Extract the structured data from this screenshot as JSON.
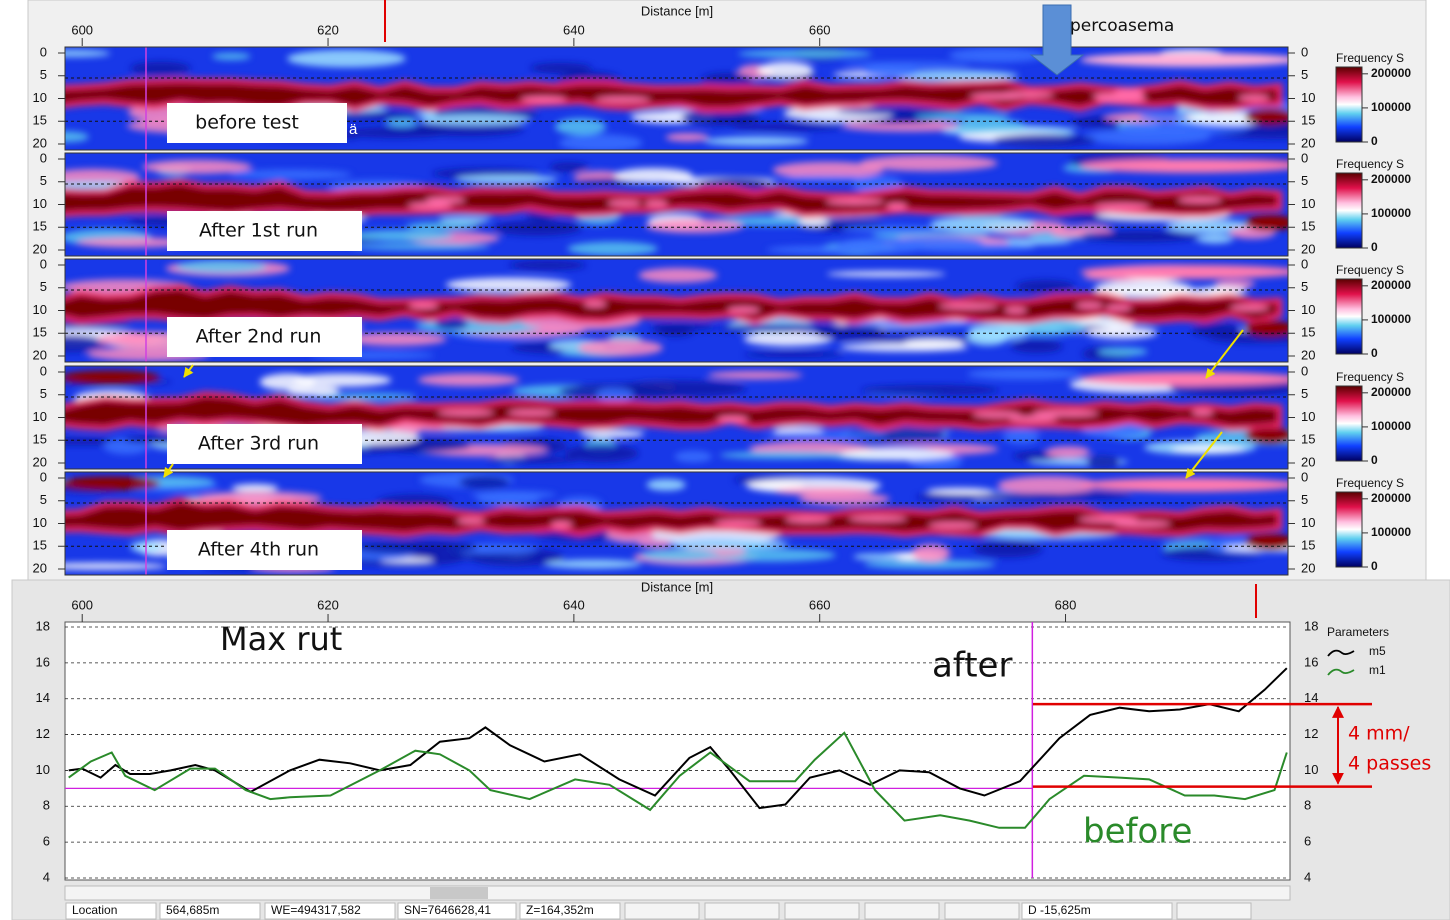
{
  "radargram": {
    "x_axis_title": "Distance [m]",
    "xlim": [
      598.6,
      698.1
    ],
    "xticks": [
      600,
      620,
      640,
      660
    ],
    "depth_lim": [
      0,
      20
    ],
    "depth_ticks": [
      0,
      5,
      10,
      15,
      20
    ],
    "annotation": "percoasema",
    "colorbar": {
      "title": "Frequency S",
      "clim": [
        0,
        220000
      ],
      "ticks": [
        200000,
        100000,
        0
      ]
    },
    "panels": [
      {
        "label": "before test",
        "overlay": "ä"
      },
      {
        "label": "After 1st run"
      },
      {
        "label": "After 2nd run"
      },
      {
        "label": "After 3rd run"
      },
      {
        "label": "After 4th run"
      }
    ]
  },
  "chart_data": {
    "type": "line",
    "title": "Max rut",
    "x_axis_title": "Distance [m]",
    "xlim": [
      598.6,
      698.1
    ],
    "xticks": [
      600,
      620,
      640,
      660,
      680
    ],
    "ylim": [
      4,
      18
    ],
    "yticks": [
      4,
      6,
      8,
      10,
      12,
      14,
      16,
      18
    ],
    "grid": true,
    "legend_title": "Parameters",
    "series": [
      {
        "name": "m5",
        "color": "#000000",
        "x": [
          598.9,
          600,
          601.5,
          602.7,
          603.9,
          605.5,
          607.2,
          609.2,
          610.8,
          613.7,
          616.9,
          619.3,
          621.8,
          624.2,
          626.7,
          629.1,
          631.5,
          632.8,
          634.8,
          637.6,
          640.5,
          643.7,
          646.6,
          649.4,
          651.1,
          652.7,
          655.1,
          657.2,
          659.2,
          661.6,
          664.1,
          666.5,
          668.9,
          671.4,
          673.4,
          676.3,
          677.9,
          679.5,
          682.0,
          684.4,
          686.8,
          689.3,
          691.7,
          694.1,
          696.2,
          698.0
        ],
        "values": [
          10.0,
          10.1,
          9.6,
          10.3,
          9.8,
          9.8,
          10.0,
          10.3,
          10.0,
          8.8,
          10.0,
          10.6,
          10.4,
          10.0,
          10.3,
          11.6,
          11.8,
          12.4,
          11.4,
          10.5,
          10.9,
          9.5,
          8.6,
          10.7,
          11.3,
          10.0,
          7.9,
          8.1,
          9.6,
          10.0,
          9.2,
          10.0,
          9.9,
          9.0,
          8.6,
          9.4,
          10.6,
          11.8,
          13.1,
          13.5,
          13.3,
          13.4,
          13.7,
          13.3,
          14.5,
          15.7
        ]
      },
      {
        "name": "m1",
        "color": "#2a8a2a",
        "x": [
          598.9,
          600.7,
          602.4,
          603.5,
          605.9,
          608.8,
          610.8,
          613.3,
          615.3,
          616.9,
          620.2,
          624.2,
          627.1,
          629.1,
          631.5,
          633.2,
          636.4,
          640.1,
          642.9,
          646.2,
          648.6,
          651.1,
          654.3,
          658.0,
          659.6,
          662.0,
          664.5,
          666.9,
          669.8,
          672.2,
          674.6,
          676.7,
          678.7,
          681.5,
          684.4,
          686.8,
          689.7,
          692.1,
          694.6,
          697.0,
          698.0
        ],
        "values": [
          9.6,
          10.5,
          11.0,
          9.7,
          8.9,
          10.1,
          10.1,
          8.9,
          8.4,
          8.5,
          8.6,
          10.0,
          11.1,
          10.9,
          10.0,
          8.9,
          8.4,
          9.5,
          9.2,
          7.8,
          9.7,
          11.0,
          9.4,
          9.4,
          10.6,
          12.1,
          8.9,
          7.2,
          7.5,
          7.2,
          6.8,
          6.8,
          8.4,
          9.7,
          9.6,
          9.5,
          8.6,
          8.6,
          8.4,
          8.9,
          11.0
        ]
      }
    ],
    "reference_levels": [
      13.7,
      9.1
    ],
    "cursor": {
      "x": 677.3,
      "y": 9.0
    },
    "annotations": [
      {
        "text": "after"
      },
      {
        "text": "before"
      },
      {
        "text": "4 mm/"
      },
      {
        "text": "4 passes"
      }
    ]
  },
  "status_bar": {
    "fields": [
      "Location",
      "564,685m",
      "WE=494317,582",
      "SN=7646628,41",
      "Z=164,352m",
      "D -15,625m"
    ]
  }
}
